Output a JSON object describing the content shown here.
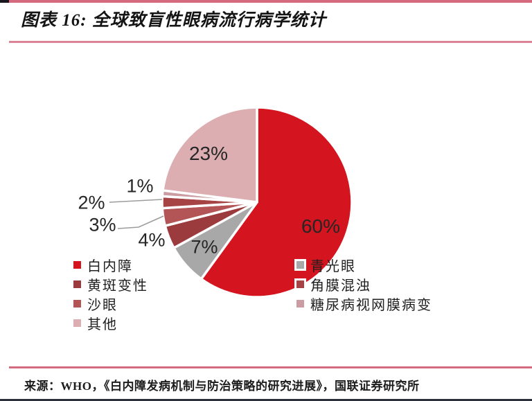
{
  "header": {
    "title": "图表 16:  全球致盲性眼病流行病学统计"
  },
  "chart_data": {
    "type": "pie",
    "title": "全球致盲性眼病流行病学统计",
    "start_angle_deg": 0,
    "direction": "clockwise",
    "unit": "%",
    "slices": [
      {
        "name": "白内障",
        "value": 60,
        "label": "60%",
        "color": "#d4141e"
      },
      {
        "name": "青光眼",
        "value": 7,
        "label": "7%",
        "color": "#a8a8a8"
      },
      {
        "name": "黄斑变性",
        "value": 4,
        "label": "4%",
        "color": "#9c3b3d"
      },
      {
        "name": "沙眼",
        "value": 3,
        "label": "3%",
        "color": "#b35557"
      },
      {
        "name": "角膜混浊",
        "value": 2,
        "label": "2%",
        "color": "#a64345"
      },
      {
        "name": "糖尿病视网膜病变",
        "value": 1,
        "label": "1%",
        "color": "#cb9ca1"
      },
      {
        "name": "其他",
        "value": 23,
        "label": "23%",
        "color": "#dcaeb2"
      }
    ],
    "legend": {
      "position": "bottom-two-columns",
      "left": [
        {
          "label": "白内障",
          "color": "#d4141e"
        },
        {
          "label": "黄斑变性",
          "color": "#9c3b3d"
        },
        {
          "label": "沙眼",
          "color": "#b35557"
        },
        {
          "label": "其他",
          "color": "#dcaeb2"
        }
      ],
      "right": [
        {
          "label": "青光眼",
          "color": "#a8a8a8"
        },
        {
          "label": "角膜混浊",
          "color": "#a64345"
        },
        {
          "label": "糖尿病视网膜病变",
          "color": "#cb9ca1"
        }
      ]
    }
  },
  "footer": {
    "source": "来源：WHO，《白内障发病机制与防治策略的研究进展》，国联证券研究所"
  },
  "colors": {
    "accent_rule_pink": "#d5697e",
    "accent_rule_light_pink": "#dc8496",
    "bottom_rule_dark": "#2a2f3a",
    "slice_stroke": "#ffffff"
  }
}
